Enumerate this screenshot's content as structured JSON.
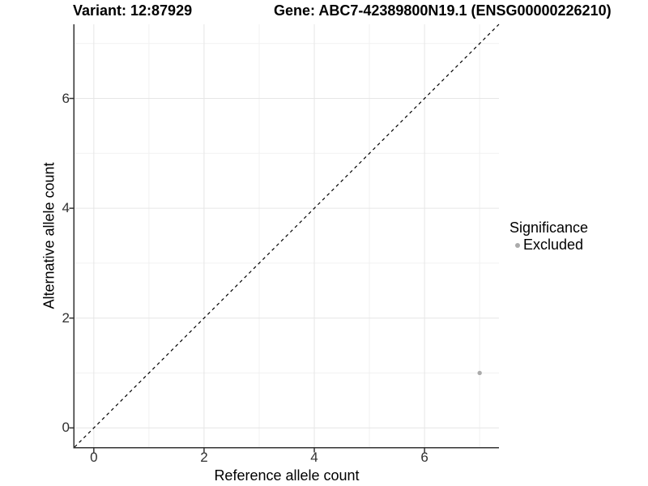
{
  "title": {
    "variant_part": "Variant: 12:87929",
    "gene_part": "Gene: ABC7-42389800N19.1 (ENSG00000226210)"
  },
  "chart_data": {
    "type": "scatter",
    "title": "Variant: 12:87929    Gene: ABC7-42389800N19.1 (ENSG00000226210)",
    "xlabel": "Reference allele count",
    "ylabel": "Alternative allele count",
    "xlim": [
      -0.35,
      7.35
    ],
    "ylim": [
      -0.35,
      7.35
    ],
    "x_major_ticks": [
      0,
      2,
      4,
      6
    ],
    "x_minor_gridlines": [
      1,
      3,
      5,
      7
    ],
    "y_major_ticks": [
      0,
      2,
      4,
      6
    ],
    "y_minor_gridlines": [
      1,
      3,
      5,
      7
    ],
    "grid": true,
    "legend": {
      "title": "Significance",
      "position": "right",
      "entries": [
        "Excluded"
      ]
    },
    "series": [
      {
        "name": "Excluded",
        "color": "#ababab",
        "points": [
          {
            "x": 7,
            "y": 1
          }
        ]
      }
    ],
    "reference_line": {
      "style": "dashed",
      "slope": 1,
      "intercept": 0,
      "color": "#000000"
    }
  },
  "colors": {
    "background": "#ffffff",
    "grid_major": "#e6e6e6",
    "grid_minor": "#f1f1f1",
    "axis_line": "#333333",
    "tick_mark": "#333333",
    "tick_text": "#303030",
    "point": "#ababab",
    "reference_line": "#000000"
  }
}
